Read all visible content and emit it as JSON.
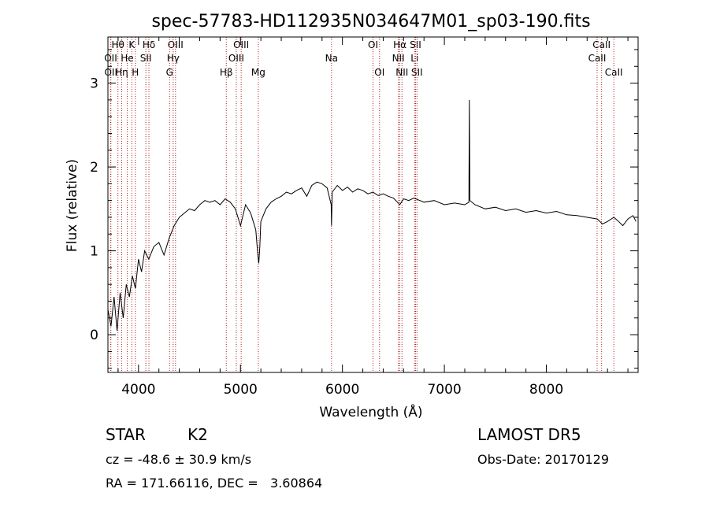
{
  "chart_data": {
    "type": "line",
    "title": "spec-57783-HD112935N034647M01_sp03-190.fits",
    "xlabel": "Wavelength (Å)",
    "ylabel": "Flux (relative)",
    "xlim": [
      3700,
      8900
    ],
    "ylim": [
      -0.45,
      3.55
    ],
    "x_ticks": [
      4000,
      5000,
      6000,
      7000,
      8000
    ],
    "x_tick_labels": [
      "4000",
      "5000",
      "6000",
      "7000",
      "8000"
    ],
    "y_ticks": [
      0,
      1,
      2,
      3
    ],
    "y_tick_labels": [
      "0",
      "1",
      "2",
      "3"
    ],
    "series": [
      {
        "x": [
          3700,
          3730,
          3760,
          3790,
          3820,
          3850,
          3880,
          3910,
          3940,
          3970,
          4000,
          4030,
          4060,
          4100,
          4150,
          4200,
          4250,
          4300,
          4350,
          4400,
          4450,
          4500,
          4550,
          4600,
          4650,
          4700,
          4750,
          4800,
          4850,
          4900,
          4950,
          5000,
          5050,
          5100,
          5150,
          5170,
          5180,
          5190,
          5200,
          5250,
          5300,
          5350,
          5400,
          5450,
          5500,
          5550,
          5600,
          5650,
          5700,
          5750,
          5800,
          5850,
          5890,
          5893,
          5900,
          5950,
          6000,
          6050,
          6100,
          6150,
          6200,
          6250,
          6300,
          6350,
          6400,
          6450,
          6500,
          6563,
          6600,
          6650,
          6700,
          6800,
          6900,
          7000,
          7100,
          7200,
          7240,
          7245,
          7250,
          7300,
          7400,
          7500,
          7600,
          7700,
          7800,
          7900,
          8000,
          8100,
          8200,
          8300,
          8400,
          8500,
          8550,
          8600,
          8662,
          8700,
          8750,
          8800,
          8850,
          8880
        ],
        "y": [
          0.3,
          0.1,
          0.45,
          0.05,
          0.5,
          0.2,
          0.6,
          0.45,
          0.7,
          0.55,
          0.9,
          0.75,
          1.0,
          0.9,
          1.05,
          1.1,
          0.95,
          1.15,
          1.3,
          1.4,
          1.45,
          1.5,
          1.48,
          1.55,
          1.6,
          1.58,
          1.6,
          1.55,
          1.62,
          1.58,
          1.5,
          1.3,
          1.55,
          1.45,
          1.25,
          0.95,
          0.85,
          1.05,
          1.35,
          1.5,
          1.58,
          1.62,
          1.65,
          1.7,
          1.68,
          1.72,
          1.75,
          1.65,
          1.78,
          1.82,
          1.8,
          1.75,
          1.55,
          1.3,
          1.7,
          1.78,
          1.72,
          1.76,
          1.7,
          1.74,
          1.72,
          1.68,
          1.7,
          1.66,
          1.68,
          1.65,
          1.63,
          1.55,
          1.62,
          1.6,
          1.63,
          1.58,
          1.6,
          1.55,
          1.57,
          1.55,
          1.58,
          2.8,
          1.6,
          1.55,
          1.5,
          1.52,
          1.48,
          1.5,
          1.46,
          1.48,
          1.45,
          1.47,
          1.43,
          1.42,
          1.4,
          1.38,
          1.32,
          1.35,
          1.4,
          1.36,
          1.3,
          1.38,
          1.42,
          1.35
        ]
      }
    ],
    "line_markers": [
      {
        "label": "Hθ",
        "x": 3798,
        "row": 1
      },
      {
        "label": "OII",
        "x": 3727,
        "row": 2
      },
      {
        "label": "OII",
        "x": 3729,
        "row": 3
      },
      {
        "label": "K",
        "x": 3934,
        "row": 1
      },
      {
        "label": "He",
        "x": 3889,
        "row": 2
      },
      {
        "label": "Hη",
        "x": 3835,
        "row": 3
      },
      {
        "label": "H",
        "x": 3969,
        "row": 3
      },
      {
        "label": "Hδ",
        "x": 4102,
        "row": 1
      },
      {
        "label": "SII",
        "x": 4072,
        "row": 2
      },
      {
        "label": "OIII",
        "x": 4363,
        "row": 1
      },
      {
        "label": "Hγ",
        "x": 4340,
        "row": 2
      },
      {
        "label": "G",
        "x": 4305,
        "row": 3
      },
      {
        "label": "OIII",
        "x": 5007,
        "row": 1
      },
      {
        "label": "OIII",
        "x": 4959,
        "row": 2
      },
      {
        "label": "Hβ",
        "x": 4861,
        "row": 3
      },
      {
        "label": "Mg",
        "x": 5175,
        "row": 3
      },
      {
        "label": "Na",
        "x": 5893,
        "row": 2
      },
      {
        "label": "OI",
        "x": 6300,
        "row": 1
      },
      {
        "label": "OI",
        "x": 6364,
        "row": 3
      },
      {
        "label": "Hα",
        "x": 6563,
        "row": 1
      },
      {
        "label": "SII",
        "x": 6717,
        "row": 1
      },
      {
        "label": "NII",
        "x": 6548,
        "row": 2
      },
      {
        "label": "Li",
        "x": 6708,
        "row": 2
      },
      {
        "label": "NII",
        "x": 6584,
        "row": 3
      },
      {
        "label": "SII",
        "x": 6731,
        "row": 3
      },
      {
        "label": "CaII",
        "x": 8542,
        "row": 1
      },
      {
        "label": "CaII",
        "x": 8498,
        "row": 2
      },
      {
        "label": "CaII",
        "x": 8662,
        "row": 3
      }
    ],
    "grid": false,
    "legend": "none"
  },
  "info": {
    "class_label": "STAR",
    "subclass": "K2",
    "survey": "LAMOST DR5",
    "redshift_line": "cz = -48.6 ± 30.9 km/s",
    "obs_date": "Obs-Date: 20170129",
    "coords": "RA = 171.66116, DEC =   3.60864"
  }
}
